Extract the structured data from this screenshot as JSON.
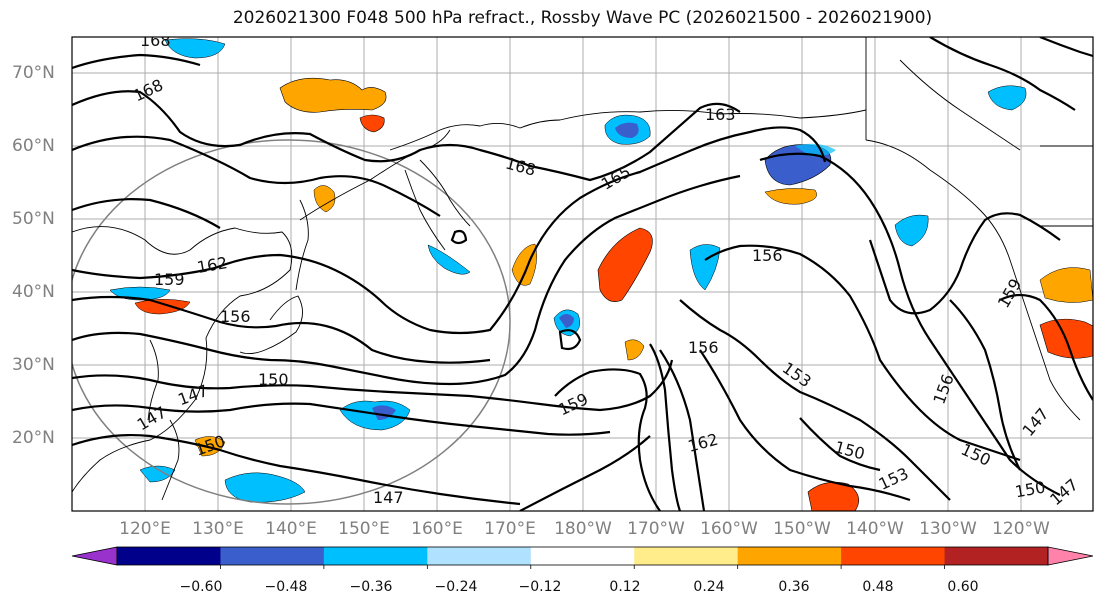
{
  "title": "2026021300 F048 500 hPa refract., Rossby Wave PC (2026021500 - 2026021900)",
  "lat_labels": [
    "70°N",
    "60°N",
    "50°N",
    "40°N",
    "30°N",
    "20°N"
  ],
  "lon_labels": [
    "120°E",
    "130°E",
    "140°E",
    "150°E",
    "160°E",
    "170°E",
    "180°W",
    "170°W",
    "160°W",
    "150°W",
    "140°W",
    "130°W",
    "120°W"
  ],
  "contour_labels": [
    "168",
    "168",
    "168",
    "165",
    "163",
    "159",
    "162",
    "156",
    "150",
    "147",
    "147",
    "150",
    "159",
    "156",
    "153",
    "162",
    "150",
    "153",
    "150",
    "156",
    "159",
    "147",
    "147",
    "150",
    "147",
    "156"
  ],
  "colorbar": {
    "tick_labels": [
      "−0.60",
      "−0.48",
      "−0.36",
      "−0.24",
      "−0.12",
      "0.12",
      "0.24",
      "0.36",
      "0.48",
      "0.60"
    ],
    "colors": [
      "#9932cc",
      "#00008b",
      "#3a5fcd",
      "#00bfff",
      "#b0e2ff",
      "#ffffff",
      "#ffec8b",
      "#ffa500",
      "#ff4500",
      "#b22222",
      "#ff82ab"
    ]
  }
}
